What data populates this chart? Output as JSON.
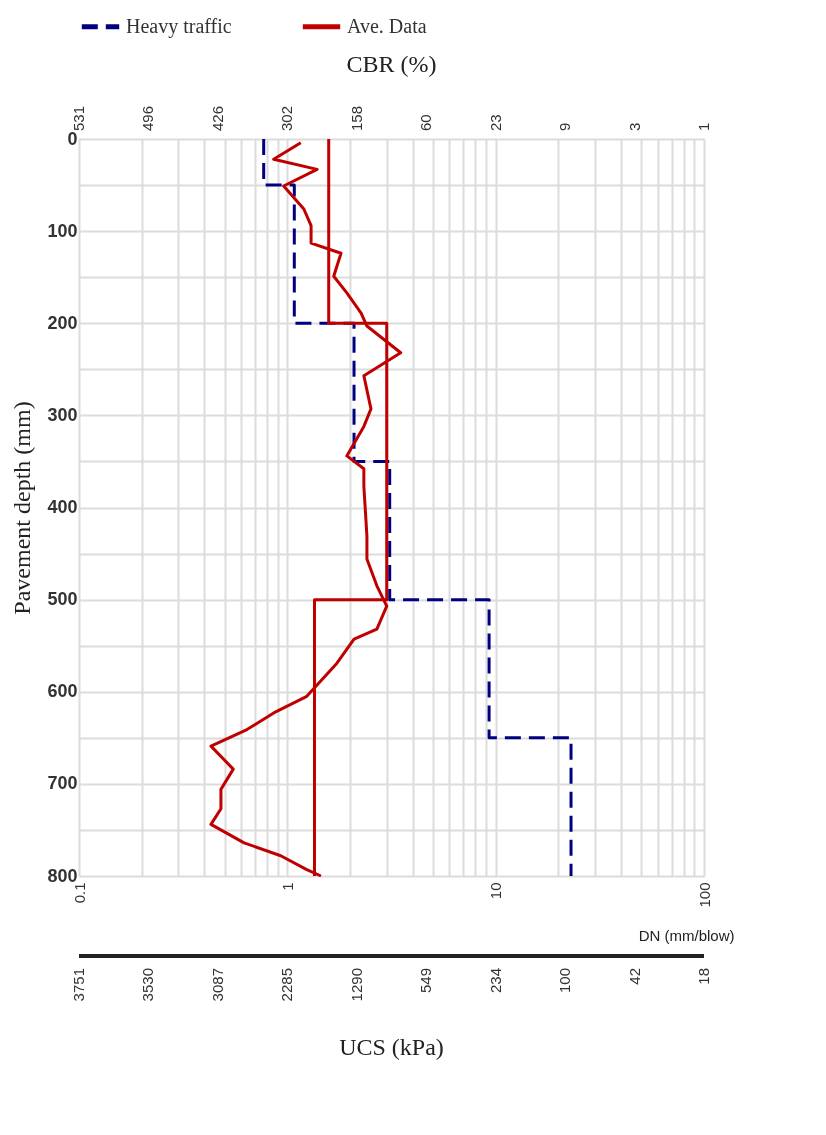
{
  "chart_data": {
    "type": "line",
    "xlabel": "DN (mm/blow)",
    "x2label": "CBR (%)",
    "ylabel": "Pavement depth (mm)",
    "log": "x",
    "grid": true,
    "legend": "top",
    "xlim": [
      0.1,
      100
    ],
    "ylim": [
      800,
      0
    ],
    "xticks": [
      0.1,
      {
        "value": 0.2,
        "label": null
      },
      {
        "value": 0.3,
        "label": null
      },
      {
        "value": 0.4,
        "label": null
      },
      {
        "value": 0.5,
        "label": null
      },
      {
        "value": 0.6,
        "label": null
      },
      {
        "value": 0.7,
        "label": null
      },
      {
        "value": 0.8,
        "label": null
      },
      {
        "value": 0.9,
        "label": null
      },
      1,
      {
        "value": 2,
        "label": null
      },
      {
        "value": 3,
        "label": null
      },
      {
        "value": 4,
        "label": null
      },
      {
        "value": 5,
        "label": null
      },
      {
        "value": 6,
        "label": null
      },
      {
        "value": 7,
        "label": null
      },
      {
        "value": 8,
        "label": null
      },
      {
        "value": 9,
        "label": null
      },
      10,
      {
        "value": 20,
        "label": null
      },
      {
        "value": 30,
        "label": null
      },
      {
        "value": 40,
        "label": null
      },
      {
        "value": 50,
        "label": null
      },
      {
        "value": 60,
        "label": null
      },
      {
        "value": 70,
        "label": null
      },
      {
        "value": 80,
        "label": null
      },
      {
        "value": 90,
        "label": null
      },
      100
    ],
    "annotations": [
      "531",
      "496",
      "426",
      "302",
      "158",
      "60",
      "23",
      "9",
      "3",
      "1",
      "3751",
      "3530",
      "3087",
      "2285",
      "1290",
      "549",
      "234",
      "100",
      "42",
      "18",
      "UCS (kPa)"
    ],
    "yticks": [
      0,
      {
        "value": 50,
        "label": null
      },
      100,
      {
        "value": 150,
        "label": null
      },
      200,
      {
        "value": 250,
        "label": null
      },
      300,
      {
        "value": 350,
        "label": null
      },
      400,
      {
        "value": 450,
        "label": null
      },
      500,
      {
        "value": 550,
        "label": null
      },
      600,
      {
        "value": 650,
        "label": null
      },
      700,
      {
        "value": 750,
        "label": null
      },
      800
    ],
    "series": [
      {
        "name": "Heavy traffic",
        "color": "#000080",
        "line_style": "dashed",
        "x": [
          0.77,
          0.77,
          1.08,
          1.08,
          2.09,
          2.09,
          3.1,
          3.1,
          9.3,
          9.3,
          23,
          23
        ],
        "values": [
          0,
          50,
          50,
          200,
          200,
          350,
          350,
          500,
          500,
          650,
          650,
          800
        ]
      },
      {
        "color": "#c00000",
        "line_style": "solid",
        "x": [
          1.58,
          1.58,
          3.0,
          3.0,
          1.35,
          1.35
        ],
        "values": [
          0,
          200,
          200,
          500,
          500,
          800
        ]
      },
      {
        "name": "Ave. Data",
        "color": "#c00000",
        "line_style": "solid",
        "x": [
          1.16,
          0.86,
          1.39,
          0.96,
          1.2,
          1.3,
          1.3,
          1.81,
          1.67,
          1.93,
          2.26,
          2.41,
          3.5,
          2.33,
          2.52,
          2.33,
          1.93,
          2.33,
          2.33,
          2.41,
          2.41,
          2.69,
          3.0,
          2.69,
          2.09,
          1.73,
          1.24,
          0.86,
          0.64,
          0.43,
          0.55,
          0.48,
          0.48,
          0.43,
          0.62,
          0.93,
          1.24,
          1.45
        ],
        "values": [
          4,
          22,
          33,
          51,
          76,
          94,
          113,
          124,
          149,
          167,
          189,
          203,
          232,
          257,
          293,
          312,
          344,
          358,
          377,
          431,
          456,
          485,
          507,
          532,
          543,
          569,
          605,
          623,
          641,
          659,
          684,
          706,
          727,
          744,
          764,
          778,
          793,
          800
        ]
      }
    ]
  }
}
